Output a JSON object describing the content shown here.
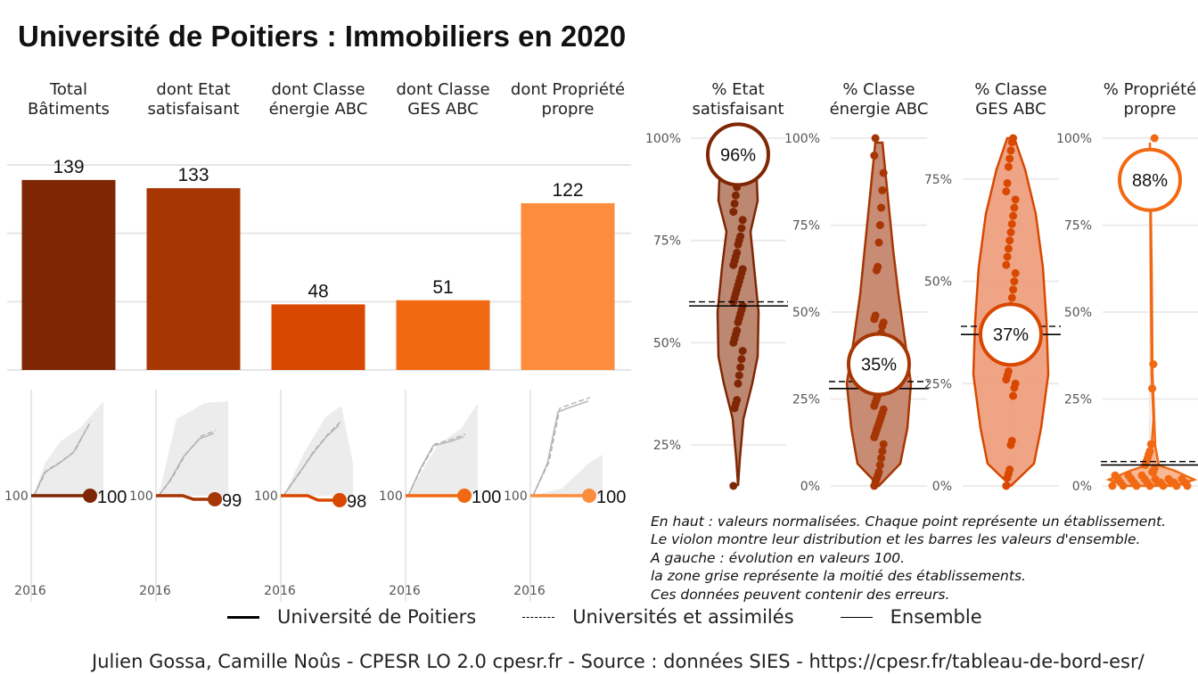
{
  "title": "Université de Poitiers  :  Immobiliers en 2020",
  "chart_data": [
    {
      "type": "bar",
      "categories": [
        "Total\nBâtiments",
        "dont Etat\nsatisfaisant",
        "dont Classe\nénergie ABC",
        "dont Classe\nGES ABC",
        "dont Propriété\npropre"
      ],
      "values": [
        139,
        133,
        48,
        51,
        122
      ],
      "colors": [
        "#7f2704",
        "#a63603",
        "#d94801",
        "#f16913",
        "#fd8d3c"
      ],
      "ylim": [
        0,
        150
      ],
      "grid": true
    },
    {
      "type": "line",
      "title": "évolution en valeurs 100",
      "x_tick": "2016",
      "base_label": "100",
      "end_values": [
        100,
        99,
        98,
        100,
        100
      ],
      "series_names": [
        "Université de Poitiers",
        "Universités et assimilés",
        "Ensemble"
      ],
      "grey_band": "la moitié des établissements"
    },
    {
      "type": "scatter",
      "subtype": "violin",
      "categories": [
        "% Etat\nsatisfaisant",
        "% Classe\nénergie ABC",
        "% Classe\nGES ABC",
        "% Propriété\npropre"
      ],
      "values": [
        96,
        35,
        37,
        88
      ],
      "values_label": [
        "96%",
        "35%",
        "37%",
        "88%"
      ],
      "ensemble": [
        59,
        28,
        37,
        6
      ],
      "universites": [
        60,
        30,
        39,
        7
      ],
      "colors": [
        "#7f2704",
        "#a63603",
        "#d94801",
        "#f16913"
      ],
      "panels": [
        {
          "ylim": [
            15,
            100
          ],
          "ticks": [
            "25%",
            "50%",
            "75%",
            "100%"
          ]
        },
        {
          "ylim": [
            0,
            100
          ],
          "ticks": [
            "0%",
            "25%",
            "50%",
            "75%",
            "100%"
          ]
        },
        {
          "ylim": [
            0,
            85
          ],
          "ticks": [
            "0%",
            "25%",
            "50%",
            "75%"
          ]
        },
        {
          "ylim": [
            0,
            100
          ],
          "ticks": [
            "0%",
            "25%",
            "50%",
            "75%",
            "100%"
          ]
        }
      ],
      "points": [
        [
          15,
          34,
          35,
          36,
          40,
          42,
          44,
          46,
          48,
          50,
          51,
          52,
          53,
          55,
          56,
          57,
          58,
          59,
          60,
          61,
          62,
          63,
          64,
          65,
          66,
          67,
          68,
          69,
          70,
          71,
          72,
          74,
          75,
          76,
          78,
          80,
          82,
          84,
          86,
          88
        ],
        [
          0,
          1,
          2,
          3,
          4,
          6,
          8,
          10,
          12,
          14,
          15,
          16,
          17,
          18,
          19,
          20,
          21,
          22,
          23,
          24,
          25,
          26,
          27,
          28,
          29,
          30,
          31,
          32,
          34,
          36,
          38,
          40,
          42,
          44,
          46,
          47,
          48,
          49,
          62,
          63,
          70,
          75,
          80,
          85,
          90,
          95,
          100
        ],
        [
          0,
          2,
          3,
          4,
          10,
          11,
          22,
          24,
          25,
          26,
          27,
          28,
          32,
          33,
          34,
          35,
          36,
          37,
          38,
          39,
          40,
          42,
          44,
          46,
          48,
          50,
          52,
          54,
          56,
          58,
          60,
          62,
          64,
          66,
          68,
          70,
          72,
          74,
          78,
          80,
          82,
          84,
          85
        ],
        [
          0,
          0,
          0,
          0,
          0,
          0,
          0,
          1,
          1,
          1,
          1,
          1,
          1,
          1,
          1,
          2,
          2,
          2,
          2,
          2,
          2,
          3,
          3,
          3,
          4,
          4,
          5,
          6,
          7,
          8,
          9,
          10,
          12,
          28,
          35,
          100
        ]
      ]
    }
  ],
  "legend": [
    {
      "name": "Université de Poitiers",
      "style": "thick"
    },
    {
      "name": "Universités et assimilés",
      "style": "dashed"
    },
    {
      "name": "Ensemble",
      "style": "thin"
    }
  ],
  "note": [
    "En haut : valeurs normalisées. Chaque point représente un établissement.",
    "Le violon montre leur distribution et les barres les valeurs d'ensemble.",
    "A gauche : évolution en valeurs 100.",
    "la zone grise représente la moitié des établissements.",
    "Ces données peuvent contenir des erreurs."
  ],
  "caption": "Julien Gossa, Camille Noûs - CPESR LO 2.0 cpesr.fr - Source : données SIES - https://cpesr.fr/tableau-de-bord-esr/"
}
